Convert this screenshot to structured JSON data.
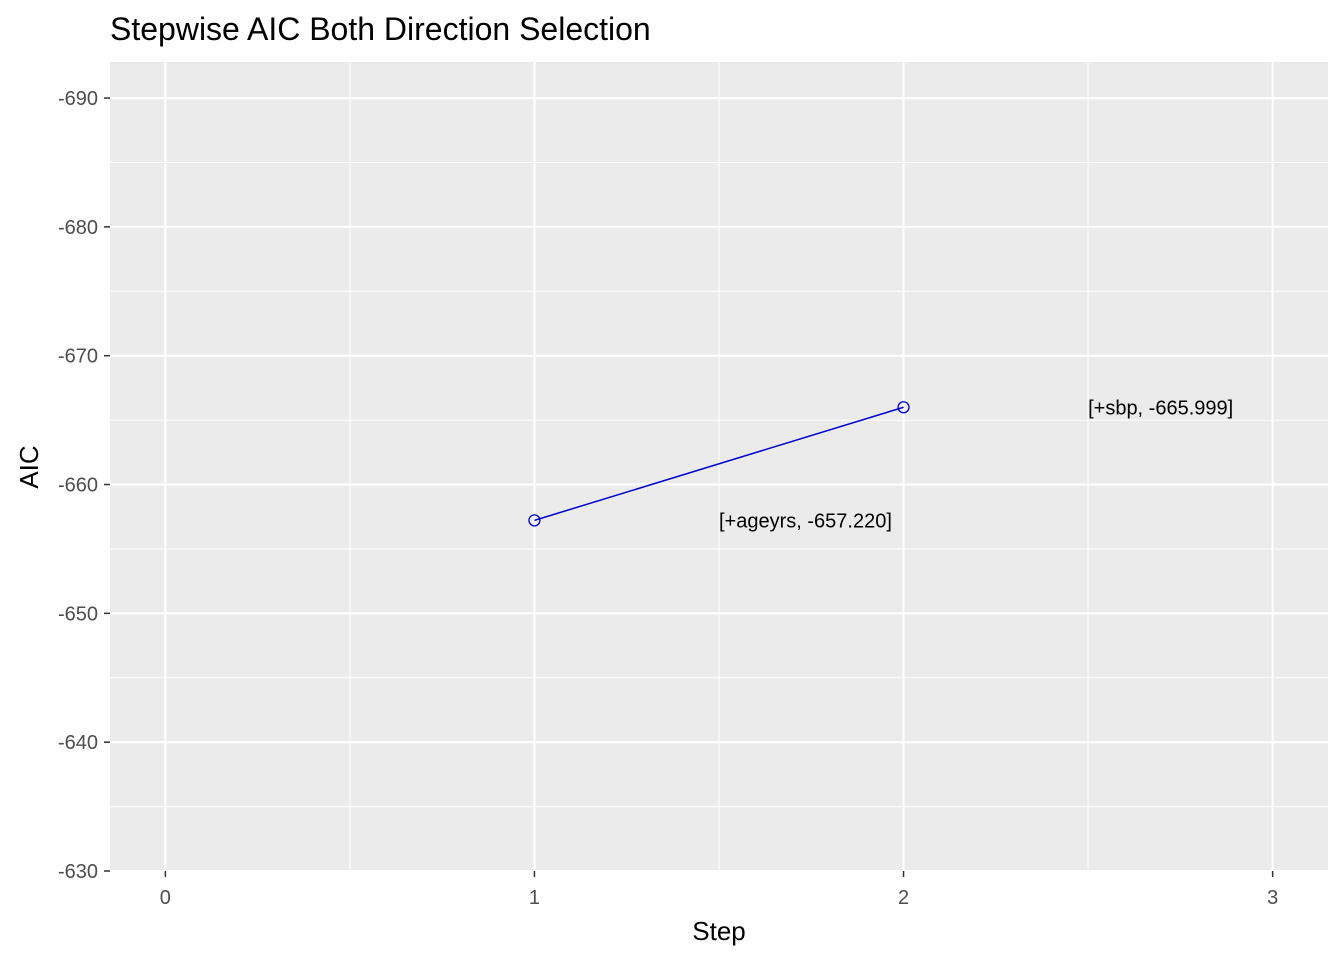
{
  "chart_data": {
    "type": "line",
    "title": "Stepwise AIC Both Direction Selection",
    "xlabel": "Step",
    "ylabel": "AIC",
    "xlim": [
      -0.15,
      3.15
    ],
    "ylim": [
      -692.8,
      -630
    ],
    "y_reversed": true,
    "x_ticks": [
      0,
      1,
      2,
      3
    ],
    "y_ticks": [
      -690,
      -680,
      -670,
      -660,
      -650,
      -640,
      -630
    ],
    "grid": true,
    "line_color": "#0000cd",
    "panel_color": "#ebebeb",
    "series": [
      {
        "x": [
          1,
          2
        ],
        "y": [
          -657.22,
          -665.999
        ]
      }
    ],
    "annotations": [
      {
        "text": "[+ageyrs, -657.220]",
        "x": 1.5,
        "y": -657.22
      },
      {
        "text": "[+sbp, -665.999]",
        "x": 2.5,
        "y": -665.999
      }
    ]
  }
}
